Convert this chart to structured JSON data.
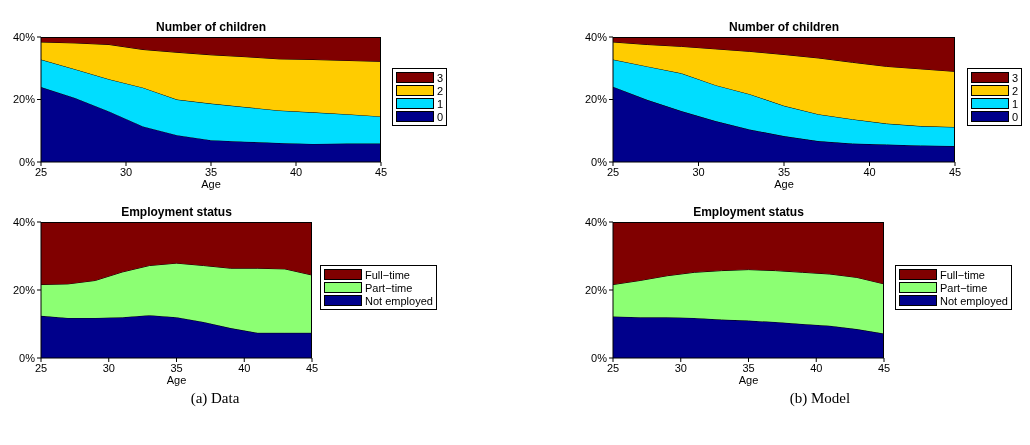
{
  "chart_data": [
    {
      "type": "area",
      "title": "Number of children",
      "xlabel": "Age",
      "stacked": true,
      "legend": "right",
      "grid": false,
      "x": [
        25,
        27,
        29,
        31,
        33,
        35,
        37,
        39,
        41,
        43,
        45
      ],
      "xlim": [
        25,
        45
      ],
      "xticks": [
        25,
        30,
        35,
        40,
        45
      ],
      "ylim": [
        0,
        40
      ],
      "yticks": [
        {
          "value": 0,
          "label": "0%"
        },
        {
          "value": 20,
          "label": "20%"
        },
        {
          "value": 40,
          "label": "40%"
        }
      ],
      "series": [
        {
          "name": "0",
          "color": "#00008b",
          "values": [
            24,
            20.5,
            16.2,
            11.4,
            8.6,
            7,
            6.5,
            6.1,
            5.8,
            5.9,
            5.9
          ]
        },
        {
          "name": "1",
          "color": "#00ddff",
          "values": [
            8.8,
            9.2,
            10.3,
            12.4,
            11.4,
            11.7,
            11.1,
            10.4,
            10.1,
            9.4,
            8.7
          ]
        },
        {
          "name": "2",
          "color": "#ffcc00",
          "values": [
            5.6,
            8.4,
            11.1,
            12.2,
            15.1,
            15.6,
            16.1,
            16.5,
            16.9,
            17.2,
            17.6
          ]
        },
        {
          "name": "3",
          "color": "#800000",
          "values": [
            1.6,
            1.9,
            2.4,
            4,
            4.9,
            5.7,
            6.3,
            7,
            7.2,
            7.5,
            7.8
          ]
        }
      ]
    },
    {
      "type": "area",
      "title": "Number of children",
      "xlabel": "Age",
      "stacked": true,
      "legend": "right",
      "grid": false,
      "x": [
        25,
        27,
        29,
        31,
        33,
        35,
        37,
        39,
        41,
        43,
        45
      ],
      "xlim": [
        25,
        45
      ],
      "xticks": [
        25,
        30,
        35,
        40,
        45
      ],
      "ylim": [
        0,
        40
      ],
      "yticks": [
        {
          "value": 0,
          "label": "0%"
        },
        {
          "value": 20,
          "label": "20%"
        },
        {
          "value": 40,
          "label": "40%"
        }
      ],
      "series": [
        {
          "name": "0",
          "color": "#00008b",
          "values": [
            24.1,
            19.9,
            16.3,
            13.1,
            10.4,
            8.3,
            6.7,
            5.9,
            5.6,
            5.3,
            5.1
          ]
        },
        {
          "name": "1",
          "color": "#00ddff",
          "values": [
            8.7,
            10.7,
            12.1,
            11.5,
            11.3,
            9.7,
            8.6,
            7.8,
            6.7,
            6.2,
            6.1
          ]
        },
        {
          "name": "2",
          "color": "#ffcc00",
          "values": [
            5.6,
            7,
            8.6,
            11.6,
            13.7,
            16.4,
            18,
            18.2,
            18.3,
            18.3,
            17.8
          ]
        },
        {
          "name": "3",
          "color": "#800000",
          "values": [
            1.6,
            2.4,
            3,
            3.8,
            4.6,
            5.6,
            6.7,
            8.1,
            9.4,
            10.2,
            11
          ]
        }
      ]
    },
    {
      "type": "area",
      "title": "Employment status",
      "xlabel": "Age",
      "stacked": true,
      "legend": "right",
      "grid": false,
      "x": [
        25,
        27,
        29,
        31,
        33,
        35,
        37,
        39,
        41,
        43,
        45
      ],
      "xlim": [
        25,
        45
      ],
      "xticks": [
        25,
        30,
        35,
        40,
        45
      ],
      "ylim": [
        0,
        40
      ],
      "yticks": [
        {
          "value": 0,
          "label": "0%"
        },
        {
          "value": 20,
          "label": "20%"
        },
        {
          "value": 40,
          "label": "40%"
        }
      ],
      "annotations": [
        "(a) Data"
      ],
      "series": [
        {
          "name": "Not employed",
          "color": "#00008b",
          "values": [
            12.4,
            11.8,
            11.8,
            12,
            12.6,
            12,
            10.6,
            8.8,
            7.4,
            7.4,
            7.4
          ]
        },
        {
          "name": "Part−time",
          "color": "#8cff73",
          "values": [
            9.2,
            10,
            11,
            13.3,
            14.6,
            15.9,
            16.6,
            17.6,
            19,
            18.8,
            17
          ]
        },
        {
          "name": "Full−time",
          "color": "#800000",
          "values": [
            18.4,
            18.2,
            17.2,
            14.7,
            12.8,
            12.1,
            12.8,
            13.6,
            13.6,
            13.8,
            15.6
          ]
        }
      ]
    },
    {
      "type": "area",
      "title": "Employment status",
      "xlabel": "Age",
      "stacked": true,
      "legend": "right",
      "grid": false,
      "x": [
        25,
        27,
        29,
        31,
        33,
        35,
        37,
        39,
        41,
        43,
        45
      ],
      "xlim": [
        25,
        45
      ],
      "xticks": [
        25,
        30,
        35,
        40,
        45
      ],
      "ylim": [
        0,
        40
      ],
      "yticks": [
        {
          "value": 0,
          "label": "0%"
        },
        {
          "value": 20,
          "label": "20%"
        },
        {
          "value": 40,
          "label": "40%"
        }
      ],
      "annotations": [
        "(b) Model"
      ],
      "series": [
        {
          "name": "Not employed",
          "color": "#00008b",
          "values": [
            12.2,
            12,
            12,
            11.8,
            11.3,
            11,
            10.6,
            10,
            9.5,
            8.5,
            7.2
          ]
        },
        {
          "name": "Part−time",
          "color": "#8cff73",
          "values": [
            9.4,
            10.8,
            12.2,
            13.4,
            14.4,
            15,
            15.1,
            15.2,
            15.2,
            15.2,
            14.6
          ]
        },
        {
          "name": "Full−time",
          "color": "#800000",
          "values": [
            18.4,
            17.2,
            15.8,
            14.8,
            14.3,
            14,
            14.3,
            14.8,
            15.3,
            16.3,
            18.2
          ]
        }
      ]
    }
  ]
}
